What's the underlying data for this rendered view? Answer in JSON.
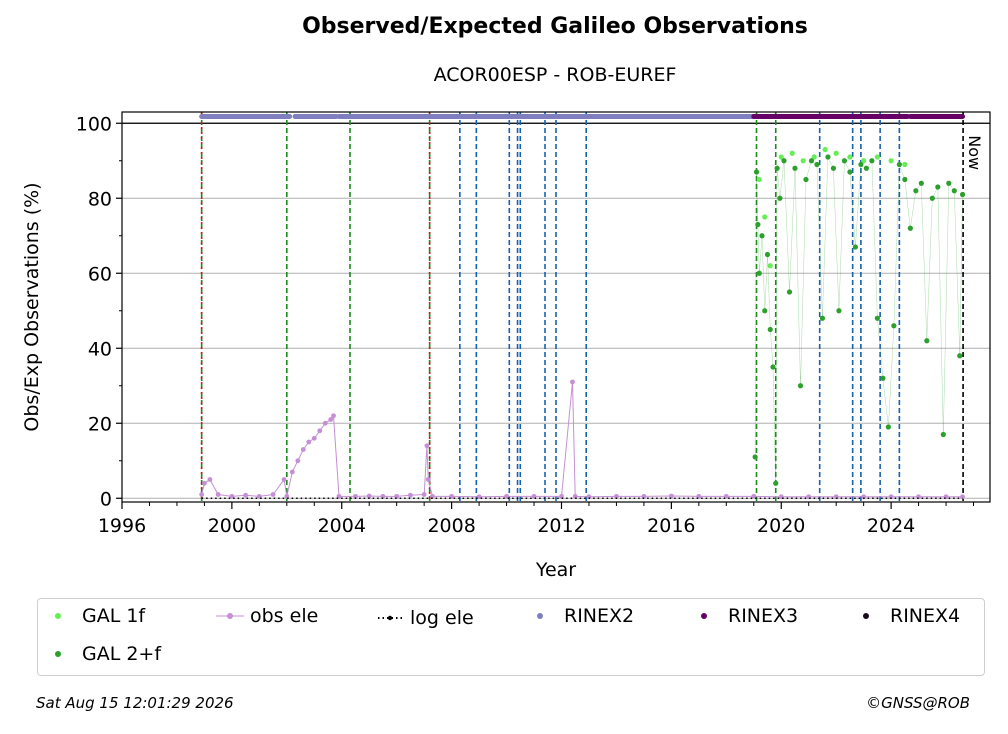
{
  "chart_data": {
    "type": "scatter",
    "title": "Observed/Expected Galileo Observations",
    "subtitle": "ACOR00ESP - ROB-EUREF",
    "xlabel": "Year",
    "ylabel": "Obs/Exp Observations (%)",
    "xlim": [
      1996,
      2027.6
    ],
    "ylim": [
      -1,
      103
    ],
    "x_ticks": [
      "1996",
      "2000",
      "2004",
      "2008",
      "2012",
      "2016",
      "2020",
      "2024"
    ],
    "x_tick_values": [
      1996,
      2000,
      2004,
      2008,
      2012,
      2016,
      2020,
      2024
    ],
    "y_ticks": [
      "0",
      "20",
      "40",
      "60",
      "80",
      "100"
    ],
    "y_tick_values": [
      0,
      20,
      40,
      60,
      80,
      100
    ],
    "grid": "y",
    "now_label": "Now",
    "now_x": 2026.62,
    "vlines_red": [
      1998.9,
      2007.2
    ],
    "vlines_green": [
      1998.9,
      2002.0,
      2004.3,
      2007.2,
      2019.1,
      2019.8
    ],
    "vlines_blue": [
      2008.3,
      2008.9,
      2010.1,
      2010.4,
      2010.5,
      2011.4,
      2011.8,
      2012.9,
      2021.4,
      2022.6,
      2022.9,
      2023.6,
      2024.3
    ],
    "series": [
      {
        "name": "GAL 1f",
        "color": "#66ee55",
        "points": [
          [
            2019.2,
            85
          ],
          [
            2019.4,
            75
          ],
          [
            2019.6,
            62
          ],
          [
            2020.0,
            91
          ],
          [
            2020.4,
            92
          ],
          [
            2020.8,
            90
          ],
          [
            2021.2,
            91
          ],
          [
            2021.6,
            93
          ],
          [
            2022.0,
            92
          ],
          [
            2022.5,
            91
          ],
          [
            2023.0,
            90
          ],
          [
            2023.5,
            91
          ],
          [
            2024.0,
            90
          ],
          [
            2024.5,
            89
          ]
        ]
      },
      {
        "name": "GAL 2+f",
        "color": "#2ca02c",
        "points": [
          [
            2019.05,
            11
          ],
          [
            2019.1,
            87
          ],
          [
            2019.15,
            73
          ],
          [
            2019.2,
            60
          ],
          [
            2019.3,
            70
          ],
          [
            2019.4,
            50
          ],
          [
            2019.5,
            65
          ],
          [
            2019.6,
            45
          ],
          [
            2019.7,
            35
          ],
          [
            2019.8,
            4
          ],
          [
            2019.85,
            88
          ],
          [
            2019.95,
            80
          ],
          [
            2020.1,
            90
          ],
          [
            2020.3,
            55
          ],
          [
            2020.5,
            88
          ],
          [
            2020.7,
            30
          ],
          [
            2020.9,
            85
          ],
          [
            2021.1,
            90
          ],
          [
            2021.3,
            89
          ],
          [
            2021.5,
            48
          ],
          [
            2021.7,
            91
          ],
          [
            2021.9,
            88
          ],
          [
            2022.1,
            50
          ],
          [
            2022.3,
            90
          ],
          [
            2022.5,
            87
          ],
          [
            2022.7,
            67
          ],
          [
            2022.9,
            89
          ],
          [
            2023.1,
            88
          ],
          [
            2023.3,
            90
          ],
          [
            2023.5,
            48
          ],
          [
            2023.7,
            32
          ],
          [
            2023.9,
            19
          ],
          [
            2024.1,
            46
          ],
          [
            2024.3,
            89
          ],
          [
            2024.5,
            85
          ],
          [
            2024.7,
            72
          ],
          [
            2024.9,
            82
          ],
          [
            2025.1,
            84
          ],
          [
            2025.3,
            42
          ],
          [
            2025.5,
            80
          ],
          [
            2025.7,
            83
          ],
          [
            2025.9,
            17
          ],
          [
            2026.1,
            84
          ],
          [
            2026.3,
            82
          ],
          [
            2026.5,
            38
          ],
          [
            2026.6,
            81
          ]
        ]
      },
      {
        "name": "obs ele",
        "color": "#c58fd5",
        "points": [
          [
            1998.9,
            1
          ],
          [
            1999.0,
            4
          ],
          [
            1999.2,
            5
          ],
          [
            1999.5,
            1
          ],
          [
            2000.0,
            0.5
          ],
          [
            2000.5,
            0.8
          ],
          [
            2001.0,
            0.5
          ],
          [
            2001.5,
            1
          ],
          [
            2001.9,
            5
          ],
          [
            2002.0,
            0.5
          ],
          [
            2002.2,
            7
          ],
          [
            2002.4,
            10
          ],
          [
            2002.6,
            13
          ],
          [
            2002.8,
            15
          ],
          [
            2003.0,
            16
          ],
          [
            2003.2,
            18
          ],
          [
            2003.4,
            20
          ],
          [
            2003.6,
            21
          ],
          [
            2003.7,
            22
          ],
          [
            2003.9,
            0.5
          ],
          [
            2004.5,
            0.5
          ],
          [
            2005.0,
            0.6
          ],
          [
            2005.5,
            0.5
          ],
          [
            2006.0,
            0.5
          ],
          [
            2006.5,
            0.8
          ],
          [
            2007.0,
            1
          ],
          [
            2007.1,
            14
          ],
          [
            2007.15,
            5
          ],
          [
            2007.3,
            0.5
          ],
          [
            2008.0,
            0.5
          ],
          [
            2009.0,
            0.4
          ],
          [
            2010.0,
            0.5
          ],
          [
            2011.0,
            0.5
          ],
          [
            2012.0,
            0.5
          ],
          [
            2012.4,
            31
          ],
          [
            2012.5,
            0.5
          ],
          [
            2013.0,
            0.4
          ],
          [
            2014.0,
            0.5
          ],
          [
            2015.0,
            0.5
          ],
          [
            2016.0,
            0.6
          ],
          [
            2017.0,
            0.5
          ],
          [
            2018.0,
            0.5
          ],
          [
            2019.0,
            0.5
          ],
          [
            2020.0,
            0.4
          ],
          [
            2021.0,
            0.4
          ],
          [
            2022.0,
            0.4
          ],
          [
            2023.0,
            0.4
          ],
          [
            2024.0,
            0.4
          ],
          [
            2025.0,
            0.4
          ],
          [
            2026.0,
            0.4
          ],
          [
            2026.6,
            0.4
          ]
        ]
      },
      {
        "name": "log ele",
        "color": "#000000",
        "points": [
          [
            1998.9,
            0
          ],
          [
            2026.6,
            0
          ]
        ]
      },
      {
        "name": "RINEX2",
        "color": "#7f7fbf",
        "segments": [
          [
            1998.9,
            2002.1
          ],
          [
            2002.3,
            2003.8
          ],
          [
            2003.9,
            2019.0
          ]
        ]
      },
      {
        "name": "RINEX3",
        "color": "#660066",
        "segments": [
          [
            2019.0,
            2024.6
          ],
          [
            2024.7,
            2026.6
          ]
        ]
      },
      {
        "name": "RINEX4",
        "color": "#1a0a1a",
        "segments": []
      }
    ]
  },
  "legend": {
    "items": [
      {
        "label": "GAL 1f",
        "kind": "dot",
        "color": "#66ee55"
      },
      {
        "label": "obs ele",
        "kind": "line-dot",
        "color": "#c58fd5"
      },
      {
        "label": "log ele",
        "kind": "dotted",
        "color": "#000000"
      },
      {
        "label": "RINEX2",
        "kind": "dot",
        "color": "#7f7fbf"
      },
      {
        "label": "RINEX3",
        "kind": "dot",
        "color": "#660066"
      },
      {
        "label": "RINEX4",
        "kind": "dot",
        "color": "#1a0a1a"
      },
      {
        "label": "GAL 2+f",
        "kind": "dot",
        "color": "#2ca02c"
      }
    ]
  },
  "footer": {
    "timestamp": "Sat Aug 15 12:01:29 2026",
    "credit": "©GNSS@ROB"
  }
}
